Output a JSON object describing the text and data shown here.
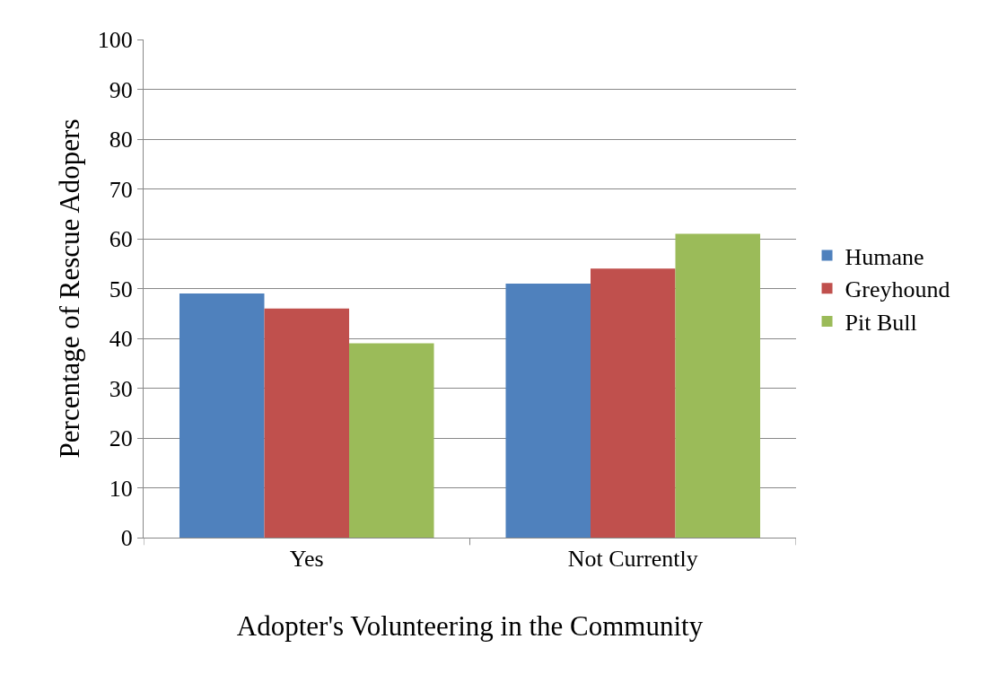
{
  "chart_data": {
    "type": "bar",
    "xlabel": "Adopter's Volunteering in the Community",
    "ylabel": "Percentage of Rescue Adopers",
    "categories": [
      "Yes",
      "Not Currently"
    ],
    "series": [
      {
        "name": "Humane",
        "color": "#4f81bd",
        "values": [
          49,
          51
        ]
      },
      {
        "name": "Greyhound",
        "color": "#c0504d",
        "values": [
          46,
          54
        ]
      },
      {
        "name": "Pit Bull",
        "color": "#9bbb59",
        "values": [
          39,
          61
        ]
      }
    ],
    "ylim": [
      0,
      100
    ],
    "yticks": [
      0,
      10,
      20,
      30,
      40,
      50,
      60,
      70,
      80,
      90,
      100
    ],
    "grid": "y",
    "legend": "right"
  }
}
